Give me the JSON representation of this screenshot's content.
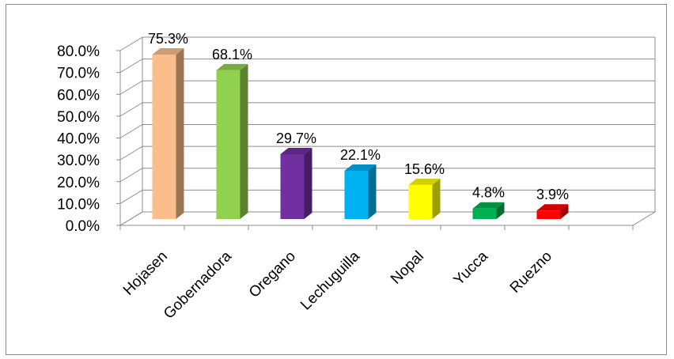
{
  "chart_data": {
    "type": "bar",
    "categories": [
      "Hojasen",
      "Gobernadora",
      "Oregano",
      "Lechuguilla",
      "Nopal",
      "Yucca",
      "Ruezno"
    ],
    "values": [
      75.3,
      68.1,
      29.7,
      22.1,
      15.6,
      4.8,
      3.9
    ],
    "data_labels": [
      "75.3%",
      "68.1%",
      "29.7%",
      "22.1%",
      "15.6%",
      "4.8%",
      "3.9%"
    ],
    "bar_colors": [
      "#f9be8c",
      "#92d050",
      "#7030a0",
      "#00b0f0",
      "#ffff00",
      "#00b050",
      "#ff0000"
    ],
    "ylim": [
      0,
      80
    ],
    "yticks": [
      "0.0%",
      "10.0%",
      "20.0%",
      "30.0%",
      "40.0%",
      "50.0%",
      "60.0%",
      "70.0%",
      "80.0%"
    ],
    "title": "",
    "xlabel": "",
    "ylabel": "",
    "grid": true,
    "style": "3d-columns"
  }
}
